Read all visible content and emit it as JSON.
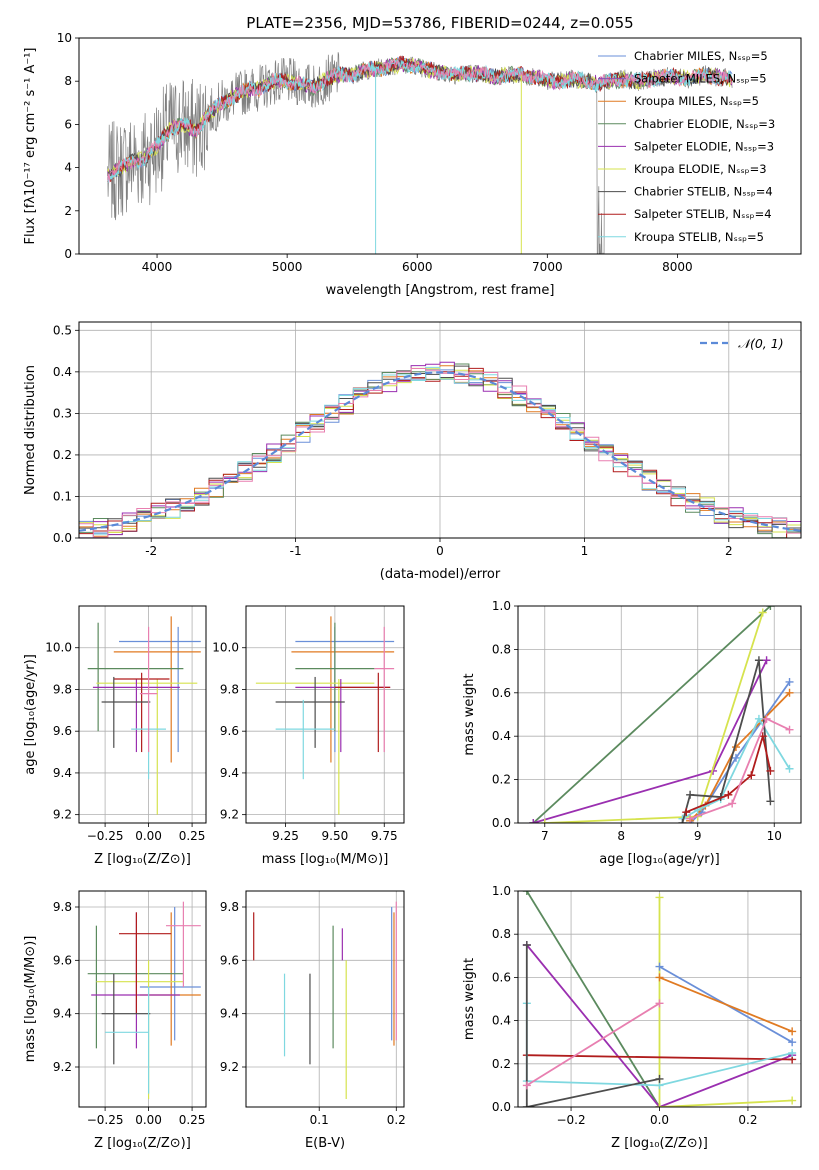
{
  "figure": {
    "title": "PLATE=2356, MJD=53786, FIBERID=0244, z=0.055"
  },
  "colors": {
    "Chabrier MILES": "#6a8fd8",
    "Salpeter MILES": "#8c50b0",
    "Kroupa MILES": "#e07a22",
    "Chabrier ELODIE": "#5b8a5e",
    "Salpeter ELODIE": "#9a2fb0",
    "Kroupa ELODIE": "#d6e34e",
    "Chabrier STELIB": "#4d4d4d",
    "Salpeter STELIB": "#b01c1c",
    "Kroupa STELIB": "#7fd8e0",
    "pink": "#e87fb0",
    "data": "#808080",
    "gaussian": "#5b8ad8"
  },
  "chart_data": [
    {
      "id": "spectrum",
      "type": "line",
      "title": "PLATE=2356, MJD=53786, FIBERID=0244, z=0.055",
      "xlabel": "wavelength [Angstrom, rest frame]",
      "ylabel": "Flux [fλ10⁻¹⁷ erg cm⁻² s⁻¹ A⁻¹]",
      "xlim": [
        3400,
        8950
      ],
      "ylim": [
        0,
        10
      ],
      "xticks": [
        4000,
        5000,
        6000,
        7000,
        8000
      ],
      "yticks": [
        0,
        2,
        4,
        6,
        8,
        10
      ],
      "legend_position": "top-right",
      "legend": [
        "Chabrier MILES, Nₛₛₚ=5",
        "Salpeter MILES, Nₛₛₚ=5",
        "Kroupa MILES, Nₛₛₚ=5",
        "Chabrier ELODIE, Nₛₛₚ=3",
        "Salpeter ELODIE, Nₛₛₚ=3",
        "Kroupa ELODIE, Nₛₛₚ=3",
        "Chabrier STELIB, Nₛₛₚ=4",
        "Salpeter STELIB, Nₛₛₚ=4",
        "Kroupa STELIB, Nₛₛₚ=5"
      ],
      "continuum": [
        [
          3620,
          3.6
        ],
        [
          3700,
          3.9
        ],
        [
          3800,
          4.3
        ],
        [
          3900,
          4.4
        ],
        [
          4000,
          5.0
        ],
        [
          4100,
          5.8
        ],
        [
          4200,
          6.0
        ],
        [
          4300,
          5.7
        ],
        [
          4400,
          6.5
        ],
        [
          4500,
          7.0
        ],
        [
          4600,
          7.3
        ],
        [
          4700,
          7.6
        ],
        [
          4800,
          7.7
        ],
        [
          4900,
          8.0
        ],
        [
          5000,
          8.0
        ],
        [
          5100,
          7.9
        ],
        [
          5200,
          7.7
        ],
        [
          5300,
          8.1
        ],
        [
          5400,
          8.3
        ],
        [
          5500,
          8.3
        ],
        [
          5600,
          8.5
        ],
        [
          5700,
          8.6
        ],
        [
          5800,
          8.7
        ],
        [
          5900,
          8.8
        ],
        [
          6000,
          8.7
        ],
        [
          6100,
          8.5
        ],
        [
          6200,
          8.4
        ],
        [
          6300,
          8.3
        ],
        [
          6400,
          8.4
        ],
        [
          6500,
          8.3
        ],
        [
          6600,
          8.2
        ],
        [
          6700,
          8.3
        ],
        [
          6800,
          8.3
        ],
        [
          6900,
          8.2
        ],
        [
          7000,
          8.0
        ],
        [
          7100,
          8.0
        ],
        [
          7200,
          8.1
        ],
        [
          7300,
          8.0
        ],
        [
          7400,
          7.9
        ],
        [
          7500,
          8.0
        ],
        [
          7600,
          8.1
        ],
        [
          7700,
          8.0
        ],
        [
          7800,
          8.1
        ],
        [
          7900,
          8.2
        ],
        [
          8000,
          8.2
        ],
        [
          8100,
          8.1
        ],
        [
          8200,
          8.3
        ],
        [
          8300,
          8.2
        ],
        [
          8400,
          8.1
        ]
      ],
      "spikes": [
        [
          5680,
          0
        ],
        [
          6800,
          0
        ]
      ]
    },
    {
      "id": "residuals",
      "type": "bar",
      "xlabel": "(data-model)/error",
      "ylabel": "Normed distribution",
      "xlim": [
        -2.5,
        2.5
      ],
      "ylim": [
        0,
        0.52
      ],
      "xticks": [
        -2,
        -1,
        0,
        1,
        2
      ],
      "yticks": [
        0.0,
        0.1,
        0.2,
        0.3,
        0.4,
        0.5
      ],
      "legend": [
        "𝒩(0, 1)"
      ],
      "legend_position": "top-right",
      "bin_width": 0.1
    },
    {
      "id": "age-vs-Z",
      "type": "scatter",
      "xlabel": "Z [log₁₀(Z/Z⊙)]",
      "ylabel": "age  [log₁₀(age/yr)]",
      "xlim": [
        -0.4,
        0.33
      ],
      "ylim": [
        9.16,
        10.2
      ],
      "xticks": [
        -0.25,
        0.0,
        0.25
      ],
      "xticklabels": [
        "−0.25",
        "0.00",
        "0.25"
      ],
      "yticks": [
        9.2,
        9.4,
        9.6,
        9.8,
        10.0
      ],
      "points": [
        {
          "c": "Chabrier MILES",
          "x": 0.17,
          "y": 10.03,
          "xl": -0.17,
          "xh": 0.3,
          "yl": 9.5,
          "yh": 10.1
        },
        {
          "c": "Kroupa MILES",
          "x": 0.13,
          "y": 9.98,
          "xl": -0.2,
          "xh": 0.3,
          "yl": 9.45,
          "yh": 10.15
        },
        {
          "c": "Chabrier ELODIE",
          "x": -0.29,
          "y": 9.9,
          "xl": -0.35,
          "xh": 0.2,
          "yl": 9.6,
          "yh": 10.12
        },
        {
          "c": "Kroupa ELODIE",
          "x": 0.05,
          "y": 9.83,
          "xl": -0.3,
          "xh": 0.28,
          "yl": 9.2,
          "yh": 9.85
        },
        {
          "c": "Salpeter ELODIE",
          "x": -0.07,
          "y": 9.81,
          "xl": -0.32,
          "xh": 0.18,
          "yl": 9.5,
          "yh": 9.85
        },
        {
          "c": "Salpeter STELIB",
          "x": -0.04,
          "y": 9.85,
          "xl": -0.2,
          "xh": 0.12,
          "yl": 9.5,
          "yh": 9.88
        },
        {
          "c": "Chabrier STELIB",
          "x": -0.2,
          "y": 9.74,
          "xl": -0.27,
          "xh": 0.01,
          "yl": 9.52,
          "yh": 9.86
        },
        {
          "c": "Kroupa STELIB",
          "x": 0.0,
          "y": 9.61,
          "xl": -0.1,
          "xh": 0.1,
          "yl": 9.37,
          "yh": 9.75
        },
        {
          "c": "pink",
          "x": 0.0,
          "y": 9.78,
          "xl": -0.05,
          "xh": 0.05,
          "yl": 9.5,
          "yh": 10.1
        }
      ]
    },
    {
      "id": "age-vs-mass",
      "type": "scatter",
      "xlabel": "mass [log₁₀(M/M⊙)]",
      "ylabel": "",
      "xlim": [
        9.05,
        9.85
      ],
      "ylim": [
        9.16,
        10.2
      ],
      "xticks": [
        9.25,
        9.5,
        9.75
      ],
      "xticklabels": [
        "9.25",
        "9.50",
        "9.75"
      ],
      "yticks": [
        9.2,
        9.4,
        9.6,
        9.8,
        10.0
      ],
      "points": [
        {
          "c": "Chabrier MILES",
          "x": 9.5,
          "y": 10.03,
          "xl": 9.3,
          "xh": 9.8,
          "yl": 9.5,
          "yh": 10.1
        },
        {
          "c": "Kroupa MILES",
          "x": 9.48,
          "y": 9.98,
          "xl": 9.28,
          "xh": 9.8,
          "yl": 9.45,
          "yh": 10.15
        },
        {
          "c": "Chabrier ELODIE",
          "x": 9.5,
          "y": 9.9,
          "xl": 9.3,
          "xh": 9.7,
          "yl": 9.6,
          "yh": 10.12
        },
        {
          "c": "Kroupa ELODIE",
          "x": 9.52,
          "y": 9.83,
          "xl": 9.1,
          "xh": 9.7,
          "yl": 9.2,
          "yh": 9.85
        },
        {
          "c": "Salpeter ELODIE",
          "x": 9.53,
          "y": 9.81,
          "xl": 9.3,
          "xh": 9.78,
          "yl": 9.5,
          "yh": 9.85
        },
        {
          "c": "Salpeter STELIB",
          "x": 9.72,
          "y": 9.81,
          "xl": 9.5,
          "xh": 9.78,
          "yl": 9.5,
          "yh": 9.88
        },
        {
          "c": "Chabrier STELIB",
          "x": 9.4,
          "y": 9.74,
          "xl": 9.2,
          "xh": 9.55,
          "yl": 9.52,
          "yh": 9.86
        },
        {
          "c": "Kroupa STELIB",
          "x": 9.34,
          "y": 9.61,
          "xl": 9.2,
          "xh": 9.5,
          "yl": 9.37,
          "yh": 9.75
        },
        {
          "c": "pink",
          "x": 9.75,
          "y": 9.9,
          "xl": 9.7,
          "xh": 9.8,
          "yl": 9.5,
          "yh": 10.1
        }
      ]
    },
    {
      "id": "weight-vs-age",
      "type": "line",
      "xlabel": "age  [log₁₀(age/yr)]",
      "ylabel": "mass weight",
      "xlim": [
        6.65,
        10.35
      ],
      "ylim": [
        0,
        1.0
      ],
      "xticks": [
        7,
        8,
        9,
        10
      ],
      "yticks": [
        0.0,
        0.2,
        0.4,
        0.6,
        0.8,
        1.0
      ],
      "series": [
        {
          "c": "Chabrier ELODIE",
          "pts": [
            [
              6.85,
              0.0
            ],
            [
              9.95,
              1.0
            ]
          ]
        },
        {
          "c": "Salpeter ELODIE",
          "pts": [
            [
              6.85,
              0.0
            ],
            [
              9.2,
              0.24
            ],
            [
              9.9,
              0.75
            ]
          ]
        },
        {
          "c": "Kroupa ELODIE",
          "pts": [
            [
              7.0,
              0.0
            ],
            [
              9.0,
              0.03
            ],
            [
              9.85,
              0.97
            ]
          ]
        },
        {
          "c": "Chabrier MILES",
          "pts": [
            [
              8.9,
              0.0
            ],
            [
              9.05,
              0.05
            ],
            [
              9.5,
              0.3
            ],
            [
              10.2,
              0.65
            ]
          ]
        },
        {
          "c": "Kroupa MILES",
          "pts": [
            [
              8.9,
              0.01
            ],
            [
              9.1,
              0.08
            ],
            [
              9.5,
              0.35
            ],
            [
              10.2,
              0.6
            ]
          ]
        },
        {
          "c": "Kroupa STELIB",
          "pts": [
            [
              8.8,
              0.02
            ],
            [
              9.0,
              0.06
            ],
            [
              9.3,
              0.11
            ],
            [
              9.8,
              0.48
            ],
            [
              10.2,
              0.25
            ]
          ]
        },
        {
          "c": "Chabrier STELIB",
          "pts": [
            [
              8.8,
              0.0
            ],
            [
              8.9,
              0.13
            ],
            [
              9.3,
              0.12
            ],
            [
              9.8,
              0.75
            ],
            [
              9.95,
              0.1
            ]
          ]
        },
        {
          "c": "Salpeter STELIB",
          "pts": [
            [
              8.85,
              0.05
            ],
            [
              9.4,
              0.13
            ],
            [
              9.7,
              0.22
            ],
            [
              9.85,
              0.4
            ],
            [
              9.95,
              0.24
            ]
          ]
        },
        {
          "c": "pink",
          "pts": [
            [
              8.9,
              0.02
            ],
            [
              9.45,
              0.09
            ],
            [
              9.9,
              0.48
            ],
            [
              10.2,
              0.43
            ]
          ]
        }
      ]
    },
    {
      "id": "mass-vs-Z",
      "type": "scatter",
      "xlabel": "Z [log₁₀(Z/Z⊙)]",
      "ylabel": "mass [log₁₀(M/M⊙)]",
      "xlim": [
        -0.4,
        0.33
      ],
      "ylim": [
        9.05,
        9.86
      ],
      "xticks": [
        -0.25,
        0.0,
        0.25
      ],
      "xticklabels": [
        "−0.25",
        "0.00",
        "0.25"
      ],
      "yticks": [
        9.2,
        9.4,
        9.6,
        9.8
      ],
      "points": [
        {
          "c": "Chabrier MILES",
          "x": 0.15,
          "y": 9.5,
          "xl": -0.05,
          "xh": 0.3,
          "yl": 9.3,
          "yh": 9.8
        },
        {
          "c": "Kroupa MILES",
          "x": 0.13,
          "y": 9.47,
          "xl": -0.05,
          "xh": 0.3,
          "yl": 9.28,
          "yh": 9.78
        },
        {
          "c": "Chabrier ELODIE",
          "x": -0.3,
          "y": 9.55,
          "xl": -0.35,
          "xh": 0.2,
          "yl": 9.27,
          "yh": 9.73
        },
        {
          "c": "Kroupa ELODIE",
          "x": 0.0,
          "y": 9.52,
          "xl": -0.3,
          "xh": 0.2,
          "yl": 9.08,
          "yh": 9.6
        },
        {
          "c": "Salpeter ELODIE",
          "x": -0.07,
          "y": 9.47,
          "xl": -0.33,
          "xh": 0.18,
          "yl": 9.27,
          "yh": 9.78
        },
        {
          "c": "Salpeter STELIB",
          "x": -0.07,
          "y": 9.7,
          "xl": -0.17,
          "xh": 0.13,
          "yl": 9.4,
          "yh": 9.78
        },
        {
          "c": "Chabrier STELIB",
          "x": -0.2,
          "y": 9.4,
          "xl": -0.27,
          "xh": 0.01,
          "yl": 9.21,
          "yh": 9.55
        },
        {
          "c": "Kroupa STELIB",
          "x": 0.0,
          "y": 9.33,
          "xl": -0.25,
          "xh": 0.0,
          "yl": 9.1,
          "yh": 9.5
        },
        {
          "c": "pink",
          "x": 0.2,
          "y": 9.73,
          "xl": 0.1,
          "xh": 0.3,
          "yl": 9.5,
          "yh": 9.82
        }
      ]
    },
    {
      "id": "mass-vs-ebv",
      "type": "scatter",
      "xlabel": "E(B-V)",
      "ylabel": "",
      "xlim": [
        0.005,
        0.21
      ],
      "ylim": [
        9.05,
        9.86
      ],
      "xticks": [
        0.1,
        0.2
      ],
      "yticks": [
        9.2,
        9.4,
        9.6,
        9.8
      ],
      "points": [
        {
          "c": "Salpeter STELIB",
          "x": 0.015,
          "y": 9.7,
          "xl": 0.015,
          "xh": 0.015,
          "yl": 9.6,
          "yh": 9.78
        },
        {
          "c": "Kroupa STELIB",
          "x": 0.055,
          "y": 9.4,
          "xl": 0.055,
          "xh": 0.055,
          "yl": 9.24,
          "yh": 9.55
        },
        {
          "c": "Chabrier STELIB",
          "x": 0.088,
          "y": 9.38,
          "xl": 0.088,
          "xh": 0.088,
          "yl": 9.21,
          "yh": 9.55
        },
        {
          "c": "Chabrier ELODIE",
          "x": 0.118,
          "y": 9.5,
          "xl": 0.118,
          "xh": 0.118,
          "yl": 9.27,
          "yh": 9.73
        },
        {
          "c": "Salpeter ELODIE",
          "x": 0.13,
          "y": 9.66,
          "xl": 0.13,
          "xh": 0.13,
          "yl": 9.6,
          "yh": 9.72
        },
        {
          "c": "Kroupa ELODIE",
          "x": 0.135,
          "y": 9.35,
          "xl": 0.135,
          "xh": 0.135,
          "yl": 9.08,
          "yh": 9.6
        },
        {
          "c": "Chabrier MILES",
          "x": 0.194,
          "y": 9.55,
          "xl": 0.194,
          "xh": 0.194,
          "yl": 9.3,
          "yh": 9.8
        },
        {
          "c": "Kroupa MILES",
          "x": 0.197,
          "y": 9.52,
          "xl": 0.197,
          "xh": 0.197,
          "yl": 9.28,
          "yh": 9.78
        },
        {
          "c": "pink",
          "x": 0.2,
          "y": 9.56,
          "xl": 0.2,
          "xh": 0.2,
          "yl": 9.3,
          "yh": 9.82
        }
      ]
    },
    {
      "id": "weight-vs-Z",
      "type": "line",
      "xlabel": "Z [log₁₀(Z/Z⊙)]",
      "ylabel": "mass weight",
      "xlim": [
        -0.32,
        0.32
      ],
      "ylim": [
        0,
        1.0
      ],
      "xticks": [
        -0.2,
        0.0,
        0.2
      ],
      "xticklabels": [
        "−0.2",
        "0.0",
        "0.2"
      ],
      "yticks": [
        0.0,
        0.2,
        0.4,
        0.6,
        0.8,
        1.0
      ],
      "series": [
        {
          "c": "Chabrier ELODIE",
          "pts": [
            [
              -0.3,
              1.0
            ],
            [
              0.0,
              0.0
            ]
          ]
        },
        {
          "c": "Salpeter ELODIE",
          "pts": [
            [
              -0.3,
              0.75
            ],
            [
              0.0,
              0.0
            ],
            [
              0.3,
              0.24
            ]
          ]
        },
        {
          "c": "Kroupa ELODIE",
          "pts": [
            [
              0.0,
              0.97
            ],
            [
              0.0,
              0.0
            ],
            [
              0.3,
              0.03
            ]
          ]
        },
        {
          "c": "Chabrier MILES",
          "pts": [
            [
              0.0,
              0.65
            ],
            [
              0.3,
              0.3
            ]
          ]
        },
        {
          "c": "Kroupa MILES",
          "pts": [
            [
              0.0,
              0.6
            ],
            [
              0.3,
              0.35
            ]
          ]
        },
        {
          "c": "Salpeter STELIB",
          "pts": [
            [
              -0.3,
              0.24
            ],
            [
              0.3,
              0.22
            ]
          ]
        },
        {
          "c": "Kroupa STELIB",
          "pts": [
            [
              -0.3,
              0.48
            ],
            [
              -0.3,
              0.12
            ],
            [
              0.0,
              0.1
            ],
            [
              0.3,
              0.25
            ]
          ]
        },
        {
          "c": "Chabrier STELIB",
          "pts": [
            [
              -0.3,
              0.75
            ],
            [
              -0.3,
              0.0
            ],
            [
              0.0,
              0.13
            ]
          ]
        },
        {
          "c": "pink",
          "pts": [
            [
              -0.3,
              0.1
            ],
            [
              0.0,
              0.48
            ]
          ]
        }
      ]
    }
  ]
}
